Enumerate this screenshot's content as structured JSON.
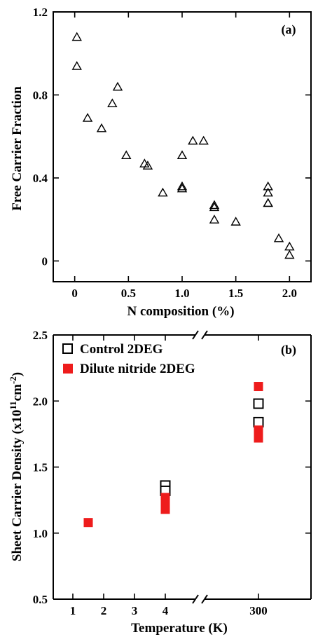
{
  "colors": {
    "axis": "#000000",
    "dilute": "#ee1c1c",
    "control_stroke": "#000000"
  },
  "chart_data": [
    {
      "type": "scatter",
      "panel_label": "(a)",
      "xlabel": "N composition (%)",
      "ylabel": "Free Carrier Fraction",
      "xlim": [
        -0.2,
        2.2
      ],
      "ylim": [
        -0.1,
        1.2
      ],
      "xticks": [
        0,
        0.5,
        1.0,
        1.5,
        2.0
      ],
      "xtick_labels": [
        "0",
        "0.5",
        "1.0",
        "1.5",
        "2.0"
      ],
      "yticks": [
        0,
        0.4,
        0.8,
        1.2
      ],
      "ytick_labels": [
        "0",
        "0.4",
        "0.8",
        "1.2"
      ],
      "marker": "open-triangle",
      "series": [
        {
          "x": [
            0.02,
            0.02,
            0.12,
            0.25,
            0.35,
            0.4,
            0.48,
            0.65,
            0.68,
            0.82,
            1.0,
            1.0,
            1.0,
            1.1,
            1.2,
            1.3,
            1.3,
            1.3,
            1.5,
            1.8,
            1.8,
            1.8,
            1.8,
            1.9,
            2.0,
            2.0
          ],
          "y": [
            1.08,
            0.94,
            0.69,
            0.64,
            0.76,
            0.84,
            0.51,
            0.47,
            0.46,
            0.33,
            0.51,
            0.36,
            0.35,
            0.58,
            0.58,
            0.27,
            0.26,
            0.2,
            0.19,
            0.36,
            0.33,
            0.28,
            0.28,
            0.11,
            0.07,
            0.03
          ]
        }
      ]
    },
    {
      "type": "scatter",
      "panel_label": "(b)",
      "xlabel": "Temperature (K)",
      "ylabel_main": "Sheet Carrier Density (x10",
      "ylabel_sup1": "11",
      "ylabel_mid": "cm",
      "ylabel_sup2": "-2",
      "ylabel_end": ")",
      "xaxis": "broken",
      "xlim": [
        0.3,
        4.9
      ],
      "xticks": [
        1,
        2,
        3,
        4
      ],
      "xtick_labels": [
        "1",
        "2",
        "3",
        "4"
      ],
      "xtick_after_break": "300",
      "ylim": [
        0.5,
        2.5
      ],
      "yticks": [
        0.5,
        1.0,
        1.5,
        2.0,
        2.5
      ],
      "ytick_labels": [
        "0.5",
        "1.0",
        "1.5",
        "2.0",
        "2.5"
      ],
      "legend_position": "top-left",
      "series": [
        {
          "name": "Control 2DEG",
          "marker": "open-square",
          "points": [
            {
              "x": "4",
              "y": 1.36
            },
            {
              "x": "4",
              "y": 1.32
            },
            {
              "x": "300",
              "y": 1.98
            },
            {
              "x": "300",
              "y": 1.84
            }
          ]
        },
        {
          "name": "Dilute nitride 2DEG",
          "marker": "filled-square",
          "points": [
            {
              "x": "1.5",
              "y": 1.08
            },
            {
              "x": "4",
              "y": 1.27
            },
            {
              "x": "4",
              "y": 1.24
            },
            {
              "x": "4",
              "y": 1.18
            },
            {
              "x": "300",
              "y": 2.11
            },
            {
              "x": "300",
              "y": 1.78
            },
            {
              "x": "300",
              "y": 1.75
            },
            {
              "x": "300",
              "y": 1.72
            }
          ]
        }
      ]
    }
  ]
}
